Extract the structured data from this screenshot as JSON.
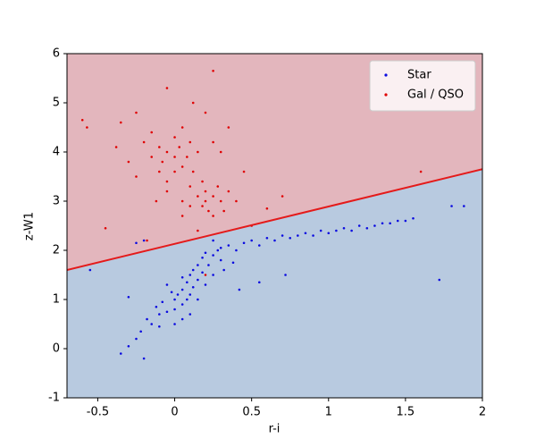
{
  "chart_data": {
    "type": "scatter",
    "xlabel": "r-i",
    "ylabel": "z-W1",
    "xlim": [
      -0.7,
      2.0
    ],
    "ylim": [
      -1,
      6
    ],
    "xticks": [
      -0.5,
      0.0,
      0.5,
      1.0,
      1.5,
      2.0
    ],
    "yticks": [
      -1,
      0,
      1,
      2,
      3,
      4,
      5,
      6
    ],
    "legend": "upper right",
    "regions": {
      "above": "#e3b6bd",
      "below": "#b8cae0"
    },
    "boundary": {
      "x": [
        -0.7,
        2.0
      ],
      "y": [
        1.6,
        3.65
      ],
      "color": "#e41a1a"
    },
    "series": [
      {
        "name": "Star",
        "color": "#0a0ae0",
        "x": [
          -0.35,
          -0.3,
          -0.25,
          -0.2,
          -0.22,
          -0.15,
          -0.18,
          -0.1,
          -0.12,
          -0.05,
          -0.08,
          0.0,
          0.0,
          0.02,
          0.05,
          0.05,
          0.08,
          0.08,
          0.1,
          0.1,
          0.12,
          0.12,
          0.15,
          0.15,
          0.18,
          0.18,
          0.2,
          0.2,
          0.22,
          0.25,
          0.25,
          0.28,
          0.3,
          0.3,
          0.35,
          0.4,
          0.45,
          0.5,
          0.55,
          0.6,
          0.65,
          0.7,
          0.75,
          0.8,
          0.85,
          0.9,
          0.95,
          1.0,
          1.05,
          1.1,
          1.15,
          1.2,
          1.25,
          1.3,
          1.35,
          1.4,
          1.45,
          1.5,
          1.55,
          1.8,
          1.88,
          1.72,
          -0.55,
          -0.3,
          -0.25,
          -0.2,
          0.72,
          0.55,
          0.42,
          -0.05,
          0.0,
          0.05,
          -0.02,
          0.1,
          0.32,
          0.38,
          0.15,
          -0.1,
          0.05,
          0.25
        ],
        "values": [
          -0.1,
          0.05,
          0.2,
          -0.2,
          0.35,
          0.5,
          0.6,
          0.7,
          0.85,
          0.75,
          0.95,
          0.8,
          1.0,
          1.1,
          0.9,
          1.2,
          1.0,
          1.35,
          1.5,
          1.1,
          1.25,
          1.6,
          1.4,
          1.7,
          1.55,
          1.85,
          1.3,
          1.95,
          1.7,
          1.9,
          1.5,
          2.0,
          1.8,
          2.05,
          2.1,
          2.0,
          2.15,
          2.2,
          2.1,
          2.25,
          2.2,
          2.3,
          2.25,
          2.3,
          2.35,
          2.3,
          2.4,
          2.35,
          2.4,
          2.45,
          2.4,
          2.5,
          2.45,
          2.5,
          2.55,
          2.55,
          2.6,
          2.6,
          2.65,
          2.9,
          2.9,
          1.4,
          1.6,
          1.05,
          2.15,
          2.2,
          1.5,
          1.35,
          1.2,
          1.3,
          0.5,
          0.6,
          1.15,
          0.7,
          1.6,
          1.75,
          1.0,
          0.45,
          1.45,
          2.2
        ]
      },
      {
        "name": "Gal / QSO",
        "color": "#e00000",
        "x": [
          -0.6,
          -0.57,
          -0.45,
          1.6,
          0.25,
          0.7,
          -0.05,
          0.12,
          -0.35,
          -0.38,
          -0.3,
          -0.25,
          -0.2,
          -0.15,
          -0.15,
          -0.1,
          -0.1,
          -0.08,
          -0.05,
          -0.05,
          0.0,
          0.0,
          0.0,
          0.03,
          0.05,
          0.05,
          0.08,
          0.1,
          0.1,
          0.12,
          0.15,
          0.15,
          0.18,
          0.18,
          0.2,
          0.2,
          0.22,
          0.25,
          0.25,
          0.28,
          0.3,
          0.32,
          0.35,
          0.4,
          0.1,
          0.05,
          -0.05,
          0.25,
          0.3,
          0.35,
          -0.25,
          0.2,
          0.45,
          0.5,
          -0.18,
          0.15,
          0.6,
          0.2,
          0.05,
          -0.12
        ],
        "values": [
          4.65,
          4.5,
          2.45,
          3.6,
          5.65,
          3.1,
          5.3,
          5.0,
          4.6,
          4.1,
          3.8,
          3.5,
          4.2,
          3.9,
          4.4,
          3.6,
          4.1,
          3.8,
          4.0,
          3.4,
          3.9,
          4.3,
          3.6,
          4.1,
          3.7,
          4.5,
          3.9,
          3.3,
          4.2,
          3.6,
          4.0,
          3.1,
          3.4,
          2.9,
          3.0,
          3.2,
          2.8,
          3.1,
          2.7,
          3.3,
          3.0,
          2.8,
          3.2,
          3.0,
          2.9,
          3.0,
          3.2,
          4.2,
          4.0,
          4.5,
          4.8,
          4.8,
          3.6,
          2.5,
          2.2,
          2.4,
          2.85,
          1.5,
          2.7,
          3.0
        ]
      }
    ]
  }
}
